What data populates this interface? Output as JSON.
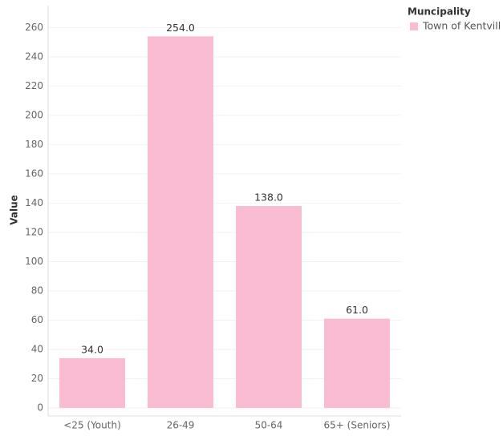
{
  "chart_data": {
    "type": "bar",
    "y_label": "Value",
    "categories": [
      "<25 (Youth)",
      "26-49",
      "50-64",
      "65+ (Seniors)"
    ],
    "series": [
      {
        "name": "Town of Kentvill",
        "color": "#f9bcd2",
        "values": [
          34,
          254,
          138,
          61
        ],
        "value_labels": [
          "34.0",
          "254.0",
          "138.0",
          "61.0"
        ]
      }
    ],
    "legend_title": "Muncipality",
    "legend": "top-right",
    "ylim": [
      0,
      275
    ],
    "yticks": [
      0,
      20,
      40,
      60,
      80,
      100,
      120,
      140,
      160,
      180,
      200,
      220,
      240,
      260
    ],
    "grid": true
  }
}
